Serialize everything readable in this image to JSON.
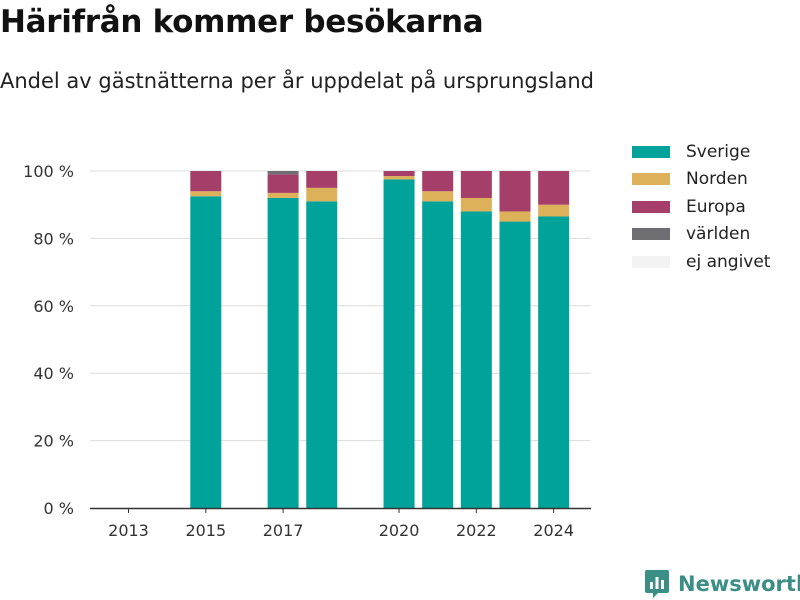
{
  "header": {
    "title": "Härifrån kommer besökarna",
    "subtitle": "Andel av gästnätterna per år uppdelat på ursprungsland"
  },
  "brand": {
    "name": "Newsworthy",
    "icon": "bar-chart-badge-icon",
    "color": "#3a8e86"
  },
  "chart_data": {
    "type": "bar",
    "stacked": true,
    "categories": [
      "2013",
      "2014",
      "2015",
      "2016",
      "2017",
      "2018",
      "2019",
      "2020",
      "2021",
      "2022",
      "2023",
      "2024"
    ],
    "x_tick_labels": [
      "2013",
      "2015",
      "2017",
      "2020",
      "2022",
      "2024"
    ],
    "series": [
      {
        "name": "Sverige",
        "color": "#00a39a",
        "values": [
          0,
          0,
          92.5,
          0,
          92,
          91,
          0,
          97.5,
          91,
          88,
          85,
          86.5
        ]
      },
      {
        "name": "Norden",
        "color": "#ddb05a",
        "values": [
          0,
          0,
          1.5,
          0,
          1.5,
          4,
          0,
          1,
          3,
          4,
          3,
          3.5
        ]
      },
      {
        "name": "Europa",
        "color": "#a53e68",
        "values": [
          0,
          0,
          6,
          0,
          5.5,
          5,
          0,
          1.5,
          6,
          8,
          12,
          10
        ]
      },
      {
        "name": "världen",
        "color": "#6e6e72",
        "values": [
          0,
          0,
          0,
          0,
          1,
          0,
          0,
          0,
          0,
          0,
          0,
          0
        ]
      },
      {
        "name": "ej angivet",
        "color": "#f3f3f3",
        "values": [
          0,
          0,
          0,
          0,
          0,
          0,
          0,
          0,
          0,
          0,
          0,
          0
        ]
      }
    ],
    "y_ticks": [
      "0 %",
      "20 %",
      "40 %",
      "60 %",
      "80 %",
      "100 %"
    ],
    "ylim": [
      0,
      100
    ],
    "xlabel": "",
    "ylabel": "",
    "grid": true,
    "legend_position": "right"
  }
}
